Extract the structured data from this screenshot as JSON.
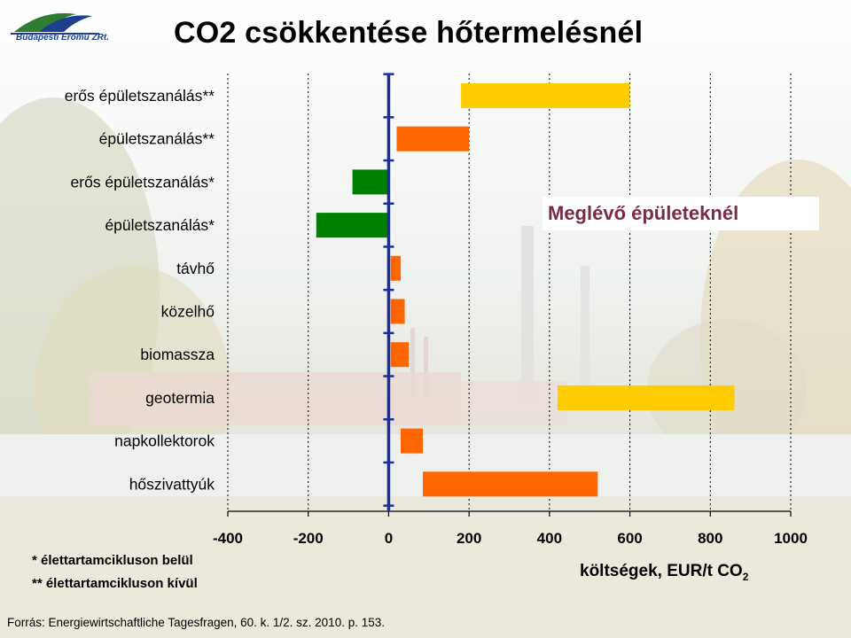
{
  "header": {
    "logo_text": "Budapesti Erőmű ZRt.",
    "title": "CO2 csökkentése hőtermelésnél"
  },
  "chart_data": {
    "type": "bar",
    "orientation": "horizontal",
    "categories": [
      "erős épületszanálás**",
      "épületszanálás**",
      "erős épületszanálás*",
      "épületszanálás*",
      "távhő",
      "közelhő",
      "biomassza",
      "geotermia",
      "napkollektorok",
      "hőszivattyúk"
    ],
    "ranges": [
      [
        180,
        600
      ],
      [
        20,
        200
      ],
      [
        -90,
        0
      ],
      [
        -180,
        0
      ],
      [
        5,
        30
      ],
      [
        5,
        40
      ],
      [
        5,
        50
      ],
      [
        420,
        860
      ],
      [
        30,
        85
      ],
      [
        85,
        520
      ]
    ],
    "colors": [
      "#ffcc00",
      "#ff6600",
      "#008000",
      "#008000",
      "#ff6600",
      "#ff6600",
      "#ff6600",
      "#ffcc00",
      "#ff6600",
      "#ff6600"
    ],
    "xlim": [
      -400,
      1000
    ],
    "xticks": [
      "-400",
      "-200",
      "0",
      "200",
      "400",
      "600",
      "800",
      "1000"
    ],
    "xlabel_main": "költségek, EUR/t CO",
    "xlabel_sub": "2",
    "grid": "vertical dashed",
    "annotation": "Meglévő épületeknél"
  },
  "footnotes": [
    "*  élettartamcikluson belül",
    "** élettartamcikluson kívül"
  ],
  "source": "Forrás: Energiewirtschaftliche Tagesfragen, 60. k. 1/2. sz.  2010. p. 153.",
  "colors": {
    "yellow": "#ffcc00",
    "orange": "#ff6600",
    "green": "#008000",
    "axis": "#1a2ea0",
    "title_note": "#7a2a4a"
  }
}
